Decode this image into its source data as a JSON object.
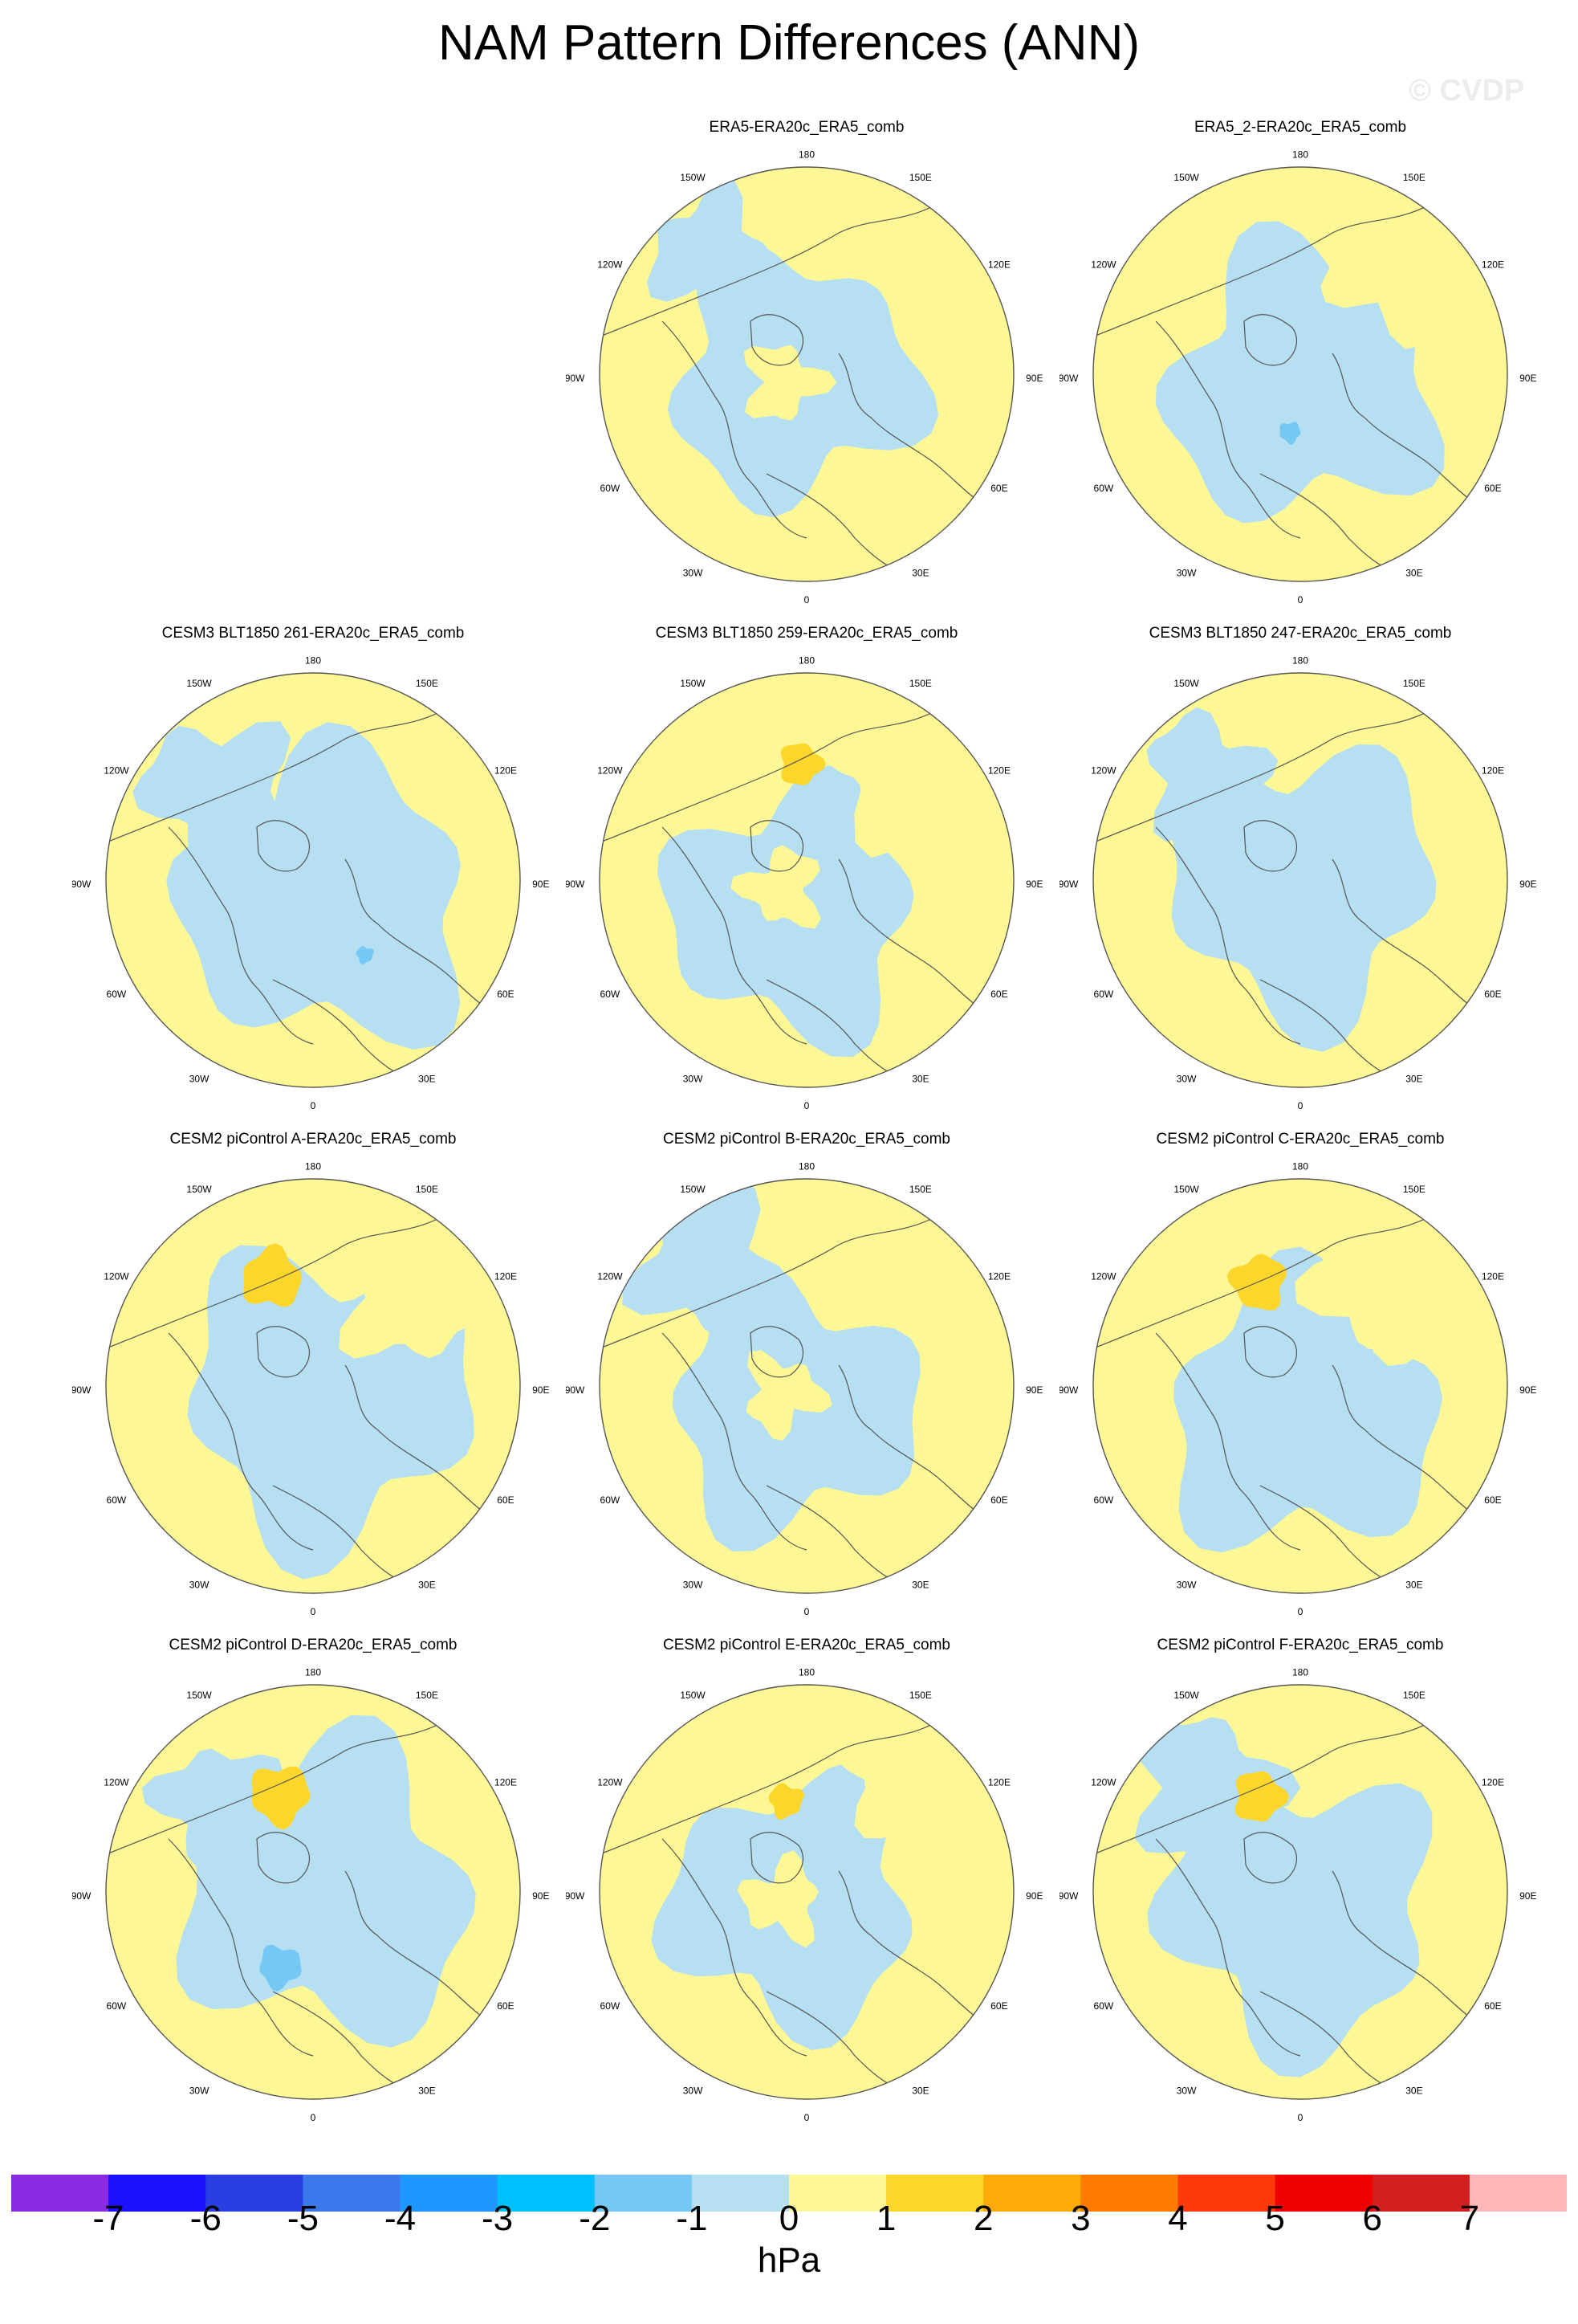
{
  "title": "NAM Pattern Differences (ANN)",
  "watermark": "© CVDP",
  "colors": {
    "pos1": "#fdf895",
    "pos2": "#fdd62c",
    "neg1": "#b6dff2",
    "neg2": "#76c8f4",
    "land_line": "#555555",
    "frame": "#555555"
  },
  "map_labels": {
    "n": "180",
    "s": "0",
    "e": "90E",
    "w": "90W",
    "ne1": "150E",
    "ne2": "120E",
    "nw1": "150W",
    "nw2": "120W",
    "se1": "60E",
    "se2": "30E",
    "sw1": "60W",
    "sw2": "30W"
  },
  "panels": [
    {
      "title": "ERA5-ERA20c_ERA5_comb",
      "col": 1,
      "row": 0,
      "variant": 0,
      "blobs": []
    },
    {
      "title": "ERA5_2-ERA20c_ERA5_comb",
      "col": 2,
      "row": 0,
      "variant": 1,
      "blobs": [
        {
          "dx": -0.05,
          "dy": 0.28,
          "r": 0.05,
          "level": "neg2"
        }
      ]
    },
    {
      "title": "CESM3 BLT1850 261-ERA20c_ERA5_comb",
      "col": 0,
      "row": 1,
      "variant": 2,
      "blobs": [
        {
          "dx": 0.25,
          "dy": 0.36,
          "r": 0.04,
          "level": "neg2"
        }
      ]
    },
    {
      "title": "CESM3 BLT1850 259-ERA20c_ERA5_comb",
      "col": 1,
      "row": 1,
      "variant": 3,
      "blobs": [
        {
          "dx": -0.03,
          "dy": -0.56,
          "r": 0.1,
          "level": "pos2"
        }
      ]
    },
    {
      "title": "CESM3 BLT1850 247-ERA20c_ERA5_comb",
      "col": 2,
      "row": 1,
      "variant": 4,
      "blobs": []
    },
    {
      "title": "CESM2 piControl A-ERA20c_ERA5_comb",
      "col": 0,
      "row": 2,
      "variant": 5,
      "blobs": [
        {
          "dx": -0.2,
          "dy": -0.52,
          "r": 0.14,
          "level": "pos2"
        }
      ]
    },
    {
      "title": "CESM2 piControl B-ERA20c_ERA5_comb",
      "col": 1,
      "row": 2,
      "variant": 6,
      "blobs": []
    },
    {
      "title": "CESM2 piControl C-ERA20c_ERA5_comb",
      "col": 2,
      "row": 2,
      "variant": 7,
      "blobs": [
        {
          "dx": -0.2,
          "dy": -0.5,
          "r": 0.13,
          "level": "pos2"
        }
      ]
    },
    {
      "title": "CESM2 piControl D-ERA20c_ERA5_comb",
      "col": 0,
      "row": 3,
      "variant": 8,
      "blobs": [
        {
          "dx": -0.16,
          "dy": -0.47,
          "r": 0.14,
          "level": "pos2"
        },
        {
          "dx": -0.16,
          "dy": 0.36,
          "r": 0.1,
          "level": "neg2"
        }
      ]
    },
    {
      "title": "CESM2 piControl E-ERA20c_ERA5_comb",
      "col": 1,
      "row": 3,
      "variant": 9,
      "blobs": [
        {
          "dx": -0.1,
          "dy": -0.44,
          "r": 0.08,
          "level": "pos2"
        }
      ]
    },
    {
      "title": "CESM2 piControl F-ERA20c_ERA5_comb",
      "col": 2,
      "row": 3,
      "variant": 10,
      "blobs": [
        {
          "dx": -0.2,
          "dy": -0.46,
          "r": 0.12,
          "level": "pos2"
        }
      ]
    }
  ],
  "colorbar": {
    "colors": [
      "#8a2be2",
      "#1a12ff",
      "#2a3fe2",
      "#3a78ec",
      "#1e96ff",
      "#00bfff",
      "#76c8f4",
      "#b6dff2",
      "#fdf895",
      "#fdd62c",
      "#fdaa0a",
      "#ff7a00",
      "#ff3a0a",
      "#ee0000",
      "#d22020",
      "#ffb6b9"
    ],
    "ticks": [
      "-7",
      "-6",
      "-5",
      "-4",
      "-3",
      "-2",
      "-1",
      "0",
      "1",
      "2",
      "3",
      "4",
      "5",
      "6",
      "7"
    ],
    "unit": "hPa"
  }
}
